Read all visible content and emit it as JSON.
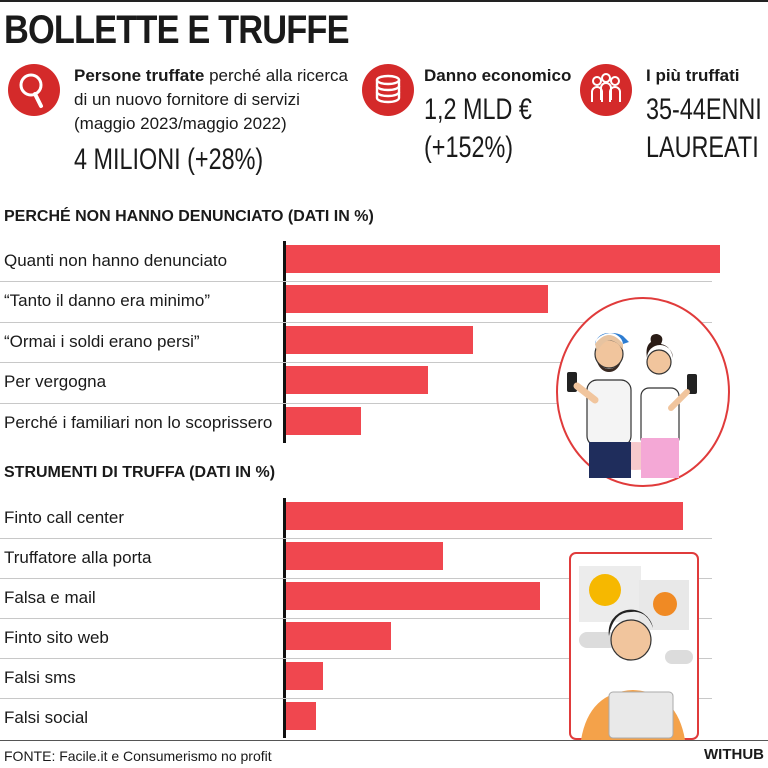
{
  "title": "BOLLETTE E TRUFFE",
  "stats": [
    {
      "label_bold": "Persone truffate",
      "label_rest": " perché alla ricerca di un nuovo fornitore di servizi (maggio 2023/maggio 2022)",
      "value": "4 MILIONI (+28%)",
      "icon": "magnifier-icon"
    },
    {
      "label_bold": "Danno economico",
      "label_rest": "",
      "value": "1,2 MLD €",
      "value2": "(+152%)",
      "icon": "coins-icon"
    },
    {
      "label_bold": "I più truffati",
      "label_rest": "",
      "value": "35-44ENNI",
      "value2": "LAUREATI",
      "icon": "people-icon"
    }
  ],
  "colors": {
    "accent": "#d42a2a",
    "bar": "#f0474f"
  },
  "chart_data": [
    {
      "type": "bar",
      "orientation": "horizontal",
      "title": "PERCHÉ NON HANNO DENUNCIATO (DATI IN %)",
      "categories": [
        "Quanti non hanno denunciato",
        "“Tanto il danno era minimo”",
        "“Ormai i soldi erano persi”",
        "Per vergogna",
        "Perché i familiari non lo scoprissero"
      ],
      "values": [
        58,
        35,
        25,
        19,
        10
      ]
    },
    {
      "type": "bar",
      "orientation": "horizontal",
      "title": "STRUMENTI DI TRUFFA (DATI IN %)",
      "categories": [
        "Finto call center",
        "Truffatore alla porta",
        "Falsa e mail",
        "Finto sito web",
        "Falsi sms",
        "Falsi social"
      ],
      "values": [
        53,
        21,
        34,
        14,
        5,
        4
      ]
    }
  ],
  "footer": "FONTE: Facile.it e Consumerismo no profit",
  "brand": "WITHUB"
}
